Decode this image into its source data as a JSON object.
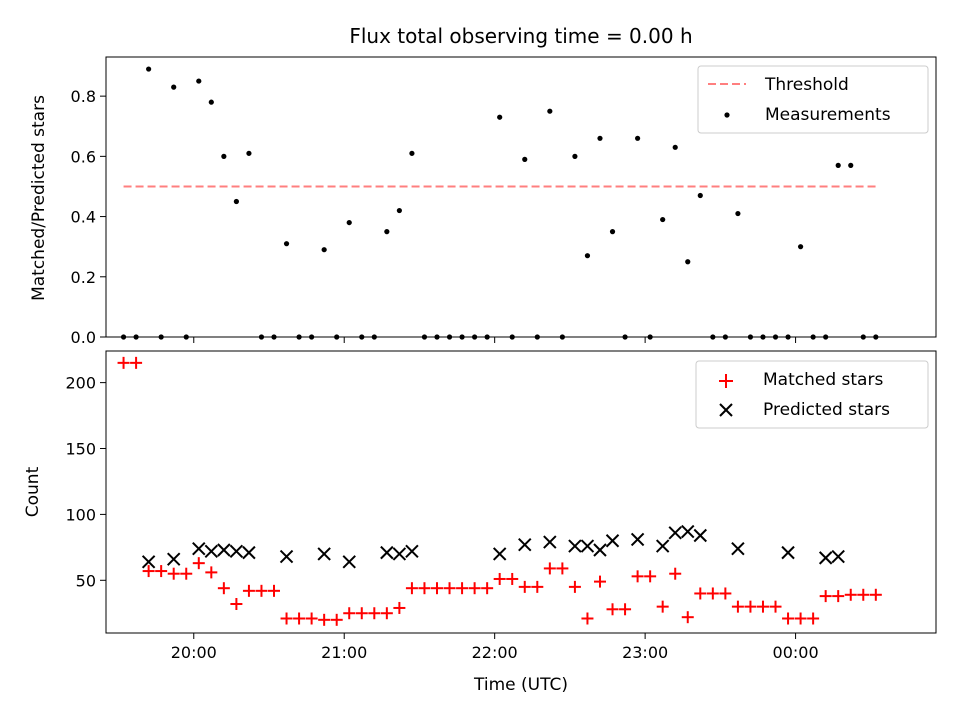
{
  "colors": {
    "threshold": "#ff7f7f",
    "measurements": "#000000",
    "matched": "#ff0000",
    "predicted": "#000000",
    "frame": "#000000",
    "legend_border": "#cccccc"
  },
  "chart_data": [
    {
      "type": "scatter",
      "title": "Flux total observing time = 0.00 h",
      "xlabel": "",
      "ylabel": "Matched/Predicted stars",
      "xlim": [
        "19:25",
        "00:56"
      ],
      "ylim": [
        0,
        0.93
      ],
      "yticks": [
        0.0,
        0.2,
        0.4,
        0.6,
        0.8
      ],
      "ytick_labels": [
        "0.0",
        "0.2",
        "0.4",
        "0.6",
        "0.8"
      ],
      "grid": false,
      "legend": "top-right",
      "legend_entries": [
        "Threshold",
        "Measurements"
      ],
      "threshold": {
        "name": "Threshold",
        "y": 0.5,
        "x_range": [
          "19:32",
          "00:32"
        ],
        "style": "dashed"
      },
      "series": [
        {
          "name": "Measurements",
          "marker": "dot",
          "x": [
            "19:32",
            "19:37",
            "19:42",
            "19:47",
            "19:52",
            "19:57",
            "20:02",
            "20:07",
            "20:12",
            "20:17",
            "20:22",
            "20:27",
            "20:32",
            "20:37",
            "20:42",
            "20:47",
            "20:52",
            "20:57",
            "21:02",
            "21:07",
            "21:12",
            "21:17",
            "21:22",
            "21:27",
            "21:32",
            "21:37",
            "21:42",
            "21:47",
            "21:52",
            "21:57",
            "22:02",
            "22:07",
            "22:12",
            "22:17",
            "22:22",
            "22:27",
            "22:32",
            "22:37",
            "22:42",
            "22:47",
            "22:52",
            "22:57",
            "23:02",
            "23:07",
            "23:12",
            "23:17",
            "23:22",
            "23:27",
            "23:32",
            "23:37",
            "23:42",
            "23:47",
            "23:52",
            "23:57",
            "00:02",
            "00:07",
            "00:12",
            "00:17",
            "00:22",
            "00:27",
            "00:32"
          ],
          "y": [
            0,
            0,
            0.89,
            0,
            0.83,
            0,
            0.85,
            0.78,
            0.6,
            0.45,
            0.61,
            0,
            0,
            0.31,
            0,
            0,
            0.29,
            0,
            0.38,
            0,
            0,
            0.35,
            0.42,
            0.61,
            0,
            0,
            0,
            0,
            0,
            0,
            0.73,
            0,
            0.59,
            0,
            0.75,
            0,
            0.6,
            0.27,
            0.66,
            0.35,
            0,
            0.66,
            0,
            0.39,
            0.63,
            0.25,
            0.47,
            0,
            0,
            0.41,
            0,
            0,
            0,
            0,
            0.3,
            0,
            0,
            0.57,
            0.57,
            0,
            0
          ]
        }
      ]
    },
    {
      "type": "scatter",
      "title": "",
      "xlabel": "Time (UTC)",
      "ylabel": "Count",
      "xlim": [
        "19:25",
        "00:56"
      ],
      "ylim": [
        10,
        224
      ],
      "yticks": [
        50,
        100,
        150,
        200
      ],
      "ytick_labels": [
        "50",
        "100",
        "150",
        "200"
      ],
      "xticks": [
        "20:00",
        "21:00",
        "22:00",
        "23:00",
        "00:00"
      ],
      "xtick_labels": [
        "20:00",
        "21:00",
        "22:00",
        "23:00",
        "00:00"
      ],
      "grid": false,
      "legend": "top-right",
      "legend_entries": [
        "Matched stars",
        "Predicted stars"
      ],
      "series": [
        {
          "name": "Matched stars",
          "marker": "plus",
          "x": [
            "19:32",
            "19:37",
            "19:42",
            "19:47",
            "19:52",
            "19:57",
            "20:02",
            "20:07",
            "20:12",
            "20:17",
            "20:22",
            "20:27",
            "20:32",
            "20:37",
            "20:42",
            "20:47",
            "20:52",
            "20:57",
            "21:02",
            "21:07",
            "21:12",
            "21:17",
            "21:22",
            "21:27",
            "21:32",
            "21:37",
            "21:42",
            "21:47",
            "21:52",
            "21:57",
            "22:02",
            "22:07",
            "22:12",
            "22:17",
            "22:22",
            "22:27",
            "22:32",
            "22:37",
            "22:42",
            "22:47",
            "22:52",
            "22:57",
            "23:02",
            "23:07",
            "23:12",
            "23:17",
            "23:22",
            "23:27",
            "23:32",
            "23:37",
            "23:42",
            "23:47",
            "23:52",
            "23:57",
            "00:02",
            "00:07",
            "00:12",
            "00:17",
            "00:22",
            "00:27",
            "00:32"
          ],
          "y": [
            215,
            215,
            57,
            57,
            55,
            55,
            63,
            56,
            44,
            32,
            42,
            42,
            42,
            21,
            21,
            21,
            20,
            20,
            25,
            25,
            25,
            25,
            29,
            44,
            44,
            44,
            44,
            44,
            44,
            44,
            51,
            51,
            45,
            45,
            59,
            59,
            45,
            21,
            49,
            28,
            28,
            53,
            53,
            30,
            55,
            22,
            40,
            40,
            40,
            30,
            30,
            30,
            30,
            21,
            21,
            21,
            38,
            38,
            39,
            39,
            39
          ]
        },
        {
          "name": "Predicted stars",
          "marker": "x",
          "x": [
            "19:42",
            "19:52",
            "20:02",
            "20:07",
            "20:12",
            "20:17",
            "20:22",
            "20:37",
            "20:52",
            "21:02",
            "21:17",
            "21:22",
            "21:27",
            "22:02",
            "22:12",
            "22:22",
            "22:32",
            "22:37",
            "22:42",
            "22:47",
            "22:57",
            "23:07",
            "23:12",
            "23:17",
            "23:22",
            "23:37",
            "23:57",
            "00:12",
            "00:17"
          ],
          "y": [
            64,
            66,
            74,
            72,
            73,
            72,
            71,
            68,
            70,
            64,
            71,
            70,
            72,
            70,
            77,
            79,
            76,
            76,
            73,
            80,
            81,
            76,
            86,
            87,
            84,
            74,
            71,
            67,
            68
          ]
        }
      ]
    }
  ]
}
